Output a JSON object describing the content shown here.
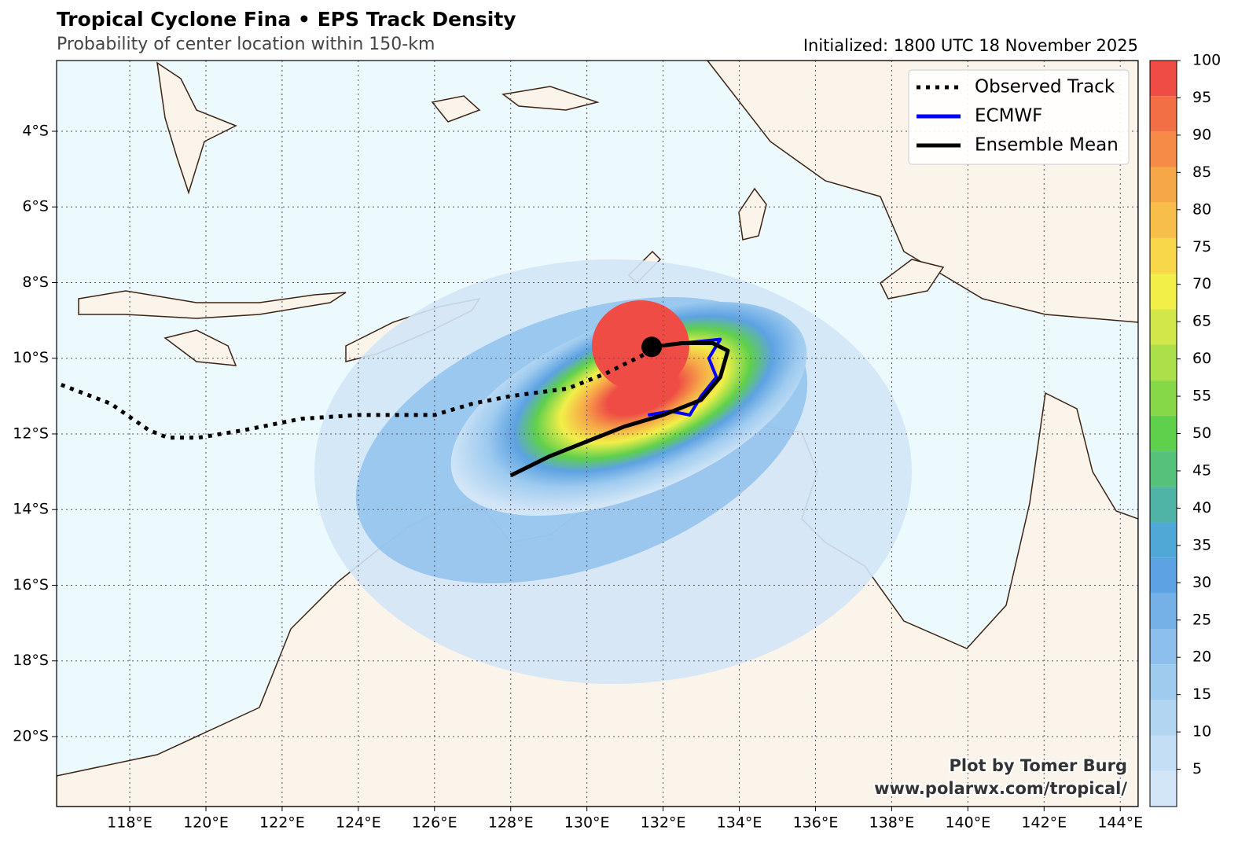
{
  "header": {
    "title": "Tropical Cyclone Fina • EPS Track Density",
    "subtitle": "Probability of center location within 150-km",
    "initialized": "Initialized: 1800 UTC 18 November 2025"
  },
  "map": {
    "xlim": [
      116.08,
      144.47
    ],
    "ylim": [
      -21.85,
      -2.13
    ],
    "xticks": [
      {
        "value": 118,
        "label": "118°E"
      },
      {
        "value": 120,
        "label": "120°E"
      },
      {
        "value": 122,
        "label": "122°E"
      },
      {
        "value": 124,
        "label": "124°E"
      },
      {
        "value": 126,
        "label": "126°E"
      },
      {
        "value": 128,
        "label": "128°E"
      },
      {
        "value": 130,
        "label": "130°E"
      },
      {
        "value": 132,
        "label": "132°E"
      },
      {
        "value": 134,
        "label": "134°E"
      },
      {
        "value": 136,
        "label": "136°E"
      },
      {
        "value": 138,
        "label": "138°E"
      },
      {
        "value": 140,
        "label": "140°E"
      },
      {
        "value": 142,
        "label": "142°E"
      },
      {
        "value": 144,
        "label": "144°E"
      }
    ],
    "yticks": [
      {
        "value": -4,
        "label": "4°S"
      },
      {
        "value": -6,
        "label": "6°S"
      },
      {
        "value": -8,
        "label": "8°S"
      },
      {
        "value": -10,
        "label": "10°S"
      },
      {
        "value": -12,
        "label": "12°S"
      },
      {
        "value": -14,
        "label": "14°S"
      },
      {
        "value": -16,
        "label": "16°S"
      },
      {
        "value": -18,
        "label": "18°S"
      },
      {
        "value": -20,
        "label": "20°S"
      }
    ],
    "grid": true
  },
  "tracks": [
    {
      "name": "Observed Track",
      "color": "#000000",
      "style": "dotted",
      "lon": [
        116.2,
        117.5,
        118.5,
        119,
        119.8,
        121,
        122.5,
        124,
        126,
        127,
        128,
        129.5,
        130.5,
        131.5,
        131.7
      ],
      "lat": [
        -10.7,
        -11.2,
        -11.9,
        -12.1,
        -12.1,
        -11.9,
        -11.6,
        -11.5,
        -11.5,
        -11.2,
        -11,
        -10.8,
        -10.4,
        -9.9,
        -9.7
      ]
    },
    {
      "name": "ECMWF",
      "color": "#0000ff",
      "style": "solid",
      "lon": [
        131.7,
        132.5,
        133.5,
        133.2,
        133.4,
        133,
        132.7,
        132.2,
        131.6
      ],
      "lat": [
        -9.7,
        -9.6,
        -9.5,
        -10,
        -10.5,
        -11,
        -11.5,
        -11.4,
        -11.5
      ]
    },
    {
      "name": "Ensemble Mean",
      "color": "#000000",
      "style": "solid",
      "lon": [
        131.7,
        132.5,
        133.3,
        133.7,
        133.5,
        133,
        132,
        131,
        130,
        129,
        128
      ],
      "lat": [
        -9.7,
        -9.6,
        -9.6,
        -9.8,
        -10.5,
        -11.1,
        -11.5,
        -11.8,
        -12.2,
        -12.6,
        -13.1
      ]
    }
  ],
  "colorbar": {
    "lim": [
      0,
      100
    ],
    "colors": [
      "#d3e6f7",
      "#c3def5",
      "#b2d5f2",
      "#9fcbef",
      "#8cbfec",
      "#75b1e7",
      "#5da2e2",
      "#4fa8d6",
      "#4fb3a6",
      "#55c17a",
      "#5fd04c",
      "#86d846",
      "#abe04a",
      "#d2e84a",
      "#f2ef48",
      "#f8d84a",
      "#f7bf4a",
      "#f6a748",
      "#f58b47",
      "#f26e45",
      "#ee4c45"
    ],
    "ticks": [
      5,
      10,
      15,
      20,
      25,
      30,
      35,
      40,
      45,
      50,
      55,
      60,
      65,
      70,
      75,
      80,
      85,
      90,
      95,
      100
    ]
  },
  "credit": [
    "Plot by Tomer Burg",
    "www.polarwx.com/tropical/"
  ]
}
